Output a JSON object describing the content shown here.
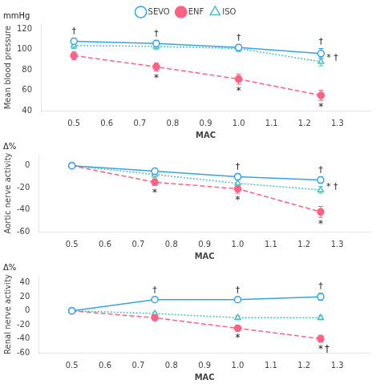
{
  "chart_data": [
    {
      "type": "line",
      "x": [
        0.5,
        0.75,
        1.0,
        1.25
      ],
      "xlabel": "MAC",
      "ylabel": "Mean blood pressure",
      "xlim": [
        0.4,
        1.4
      ],
      "xticks": [
        0.5,
        0.6,
        0.7,
        0.8,
        0.9,
        {
          "value": 1,
          "label": "1.0"
        },
        1.1,
        1.2,
        1.3
      ],
      "ylim": [
        40,
        125
      ],
      "yticks": [
        40,
        60,
        80,
        100,
        120
      ],
      "grid": false,
      "legend": "top",
      "series": [
        {
          "name": "SEVO",
          "color": "#36a2eb",
          "marker": "open-circle",
          "line_style": "solid",
          "values": [
            108,
            106,
            102,
            96
          ],
          "errors": [
            3,
            3,
            3,
            5
          ]
        },
        {
          "name": "ENF",
          "color": "#ff6384",
          "marker": "filled-circle",
          "line_style": "dashed",
          "values": [
            94,
            83,
            71,
            55
          ],
          "errors": [
            4,
            4,
            5,
            5
          ]
        },
        {
          "name": "ISO",
          "color": "#4bc0c0",
          "marker": "open-triangle",
          "line_style": "dotted",
          "values": [
            104,
            103,
            101,
            88
          ],
          "errors": [
            3,
            3,
            3,
            4
          ]
        }
      ],
      "annotations": [
        {
          "text": "mmHg"
        },
        {
          "series": "SEVO",
          "x": 0.5,
          "text": "†"
        },
        {
          "series": "SEVO",
          "x": 0.75,
          "text": "†"
        },
        {
          "series": "SEVO",
          "x": 1.0,
          "text": "†"
        },
        {
          "series": "SEVO",
          "x": 1.25,
          "text": "†"
        },
        {
          "series": "ENF",
          "x": 0.75,
          "text": "*"
        },
        {
          "series": "ENF",
          "x": 1.0,
          "text": "*"
        },
        {
          "series": "ENF",
          "x": 1.25,
          "text": "*"
        },
        {
          "series": "ISO",
          "x": 1.25,
          "text": "* †"
        }
      ]
    },
    {
      "type": "line",
      "x": [
        0.5,
        0.75,
        1.0,
        1.25
      ],
      "xlabel": "MAC",
      "ylabel": "Aortic nerve activity",
      "xlim": [
        0.4,
        1.4
      ],
      "xticks": [
        0.5,
        0.6,
        0.7,
        0.8,
        0.9,
        {
          "value": 1,
          "label": "1.0"
        },
        1.1,
        1.2,
        1.3
      ],
      "ylim": [
        -60,
        10
      ],
      "yticks": [
        -60,
        -40,
        -20,
        0
      ],
      "grid": false,
      "series": [
        {
          "name": "SEVO",
          "color": "#36a2eb",
          "marker": "open-circle",
          "line_style": "solid",
          "values": [
            0,
            -5,
            -10,
            -13
          ],
          "errors": [
            0,
            2,
            3,
            3
          ]
        },
        {
          "name": "ENF",
          "color": "#ff6384",
          "marker": "filled-circle",
          "line_style": "dashed",
          "values": [
            0,
            -15,
            -21,
            -42
          ],
          "errors": [
            0,
            3,
            4,
            5
          ]
        },
        {
          "name": "ISO",
          "color": "#4bc0c0",
          "marker": "open-triangle",
          "line_style": "dotted",
          "values": [
            0,
            -8,
            -16,
            -22
          ],
          "errors": [
            0,
            3,
            4,
            3
          ]
        }
      ],
      "annotations": [
        {
          "text": "Δ%"
        },
        {
          "series": "SEVO",
          "x": 1.0,
          "text": "†"
        },
        {
          "series": "SEVO",
          "x": 1.25,
          "text": "†"
        },
        {
          "series": "ENF",
          "x": 0.75,
          "text": "*"
        },
        {
          "series": "ENF",
          "x": 1.0,
          "text": "*"
        },
        {
          "series": "ENF",
          "x": 1.25,
          "text": "*"
        },
        {
          "series": "ISO",
          "x": 1.25,
          "text": "* †"
        }
      ]
    },
    {
      "type": "line",
      "x": [
        0.5,
        0.75,
        1.0,
        1.25
      ],
      "xlabel": "MAC",
      "ylabel": "Renal nerve activity",
      "xlim": [
        0.4,
        1.4
      ],
      "xticks": [
        0.5,
        0.6,
        0.7,
        0.8,
        0.9,
        {
          "value": 1,
          "label": "1.0"
        },
        1.1,
        1.2,
        1.3
      ],
      "ylim": [
        -60,
        50
      ],
      "yticks": [
        -60,
        -40,
        -20,
        0,
        20,
        40
      ],
      "grid": false,
      "series": [
        {
          "name": "SEVO",
          "color": "#36a2eb",
          "marker": "open-circle",
          "line_style": "solid",
          "values": [
            0,
            16,
            16,
            20
          ],
          "errors": [
            0,
            3,
            3,
            5
          ]
        },
        {
          "name": "ENF",
          "color": "#ff6384",
          "marker": "filled-circle",
          "line_style": "dashed",
          "values": [
            0,
            -10,
            -25,
            -40
          ],
          "errors": [
            0,
            3,
            4,
            5
          ]
        },
        {
          "name": "ISO",
          "color": "#4bc0c0",
          "marker": "open-triangle",
          "line_style": "dotted",
          "values": [
            0,
            -4,
            -10,
            -10
          ],
          "errors": [
            0,
            2,
            3,
            3
          ]
        }
      ],
      "annotations": [
        {
          "text": "Δ%"
        },
        {
          "series": "SEVO",
          "x": 0.75,
          "text": "†"
        },
        {
          "series": "SEVO",
          "x": 1.0,
          "text": "†"
        },
        {
          "series": "SEVO",
          "x": 1.25,
          "text": "†"
        },
        {
          "series": "ENF",
          "x": 1.0,
          "text": "*"
        },
        {
          "series": "ENF",
          "x": 1.25,
          "text": "*"
        },
        {
          "series": "ENF",
          "x": 1.25,
          "text": "†"
        }
      ]
    }
  ]
}
